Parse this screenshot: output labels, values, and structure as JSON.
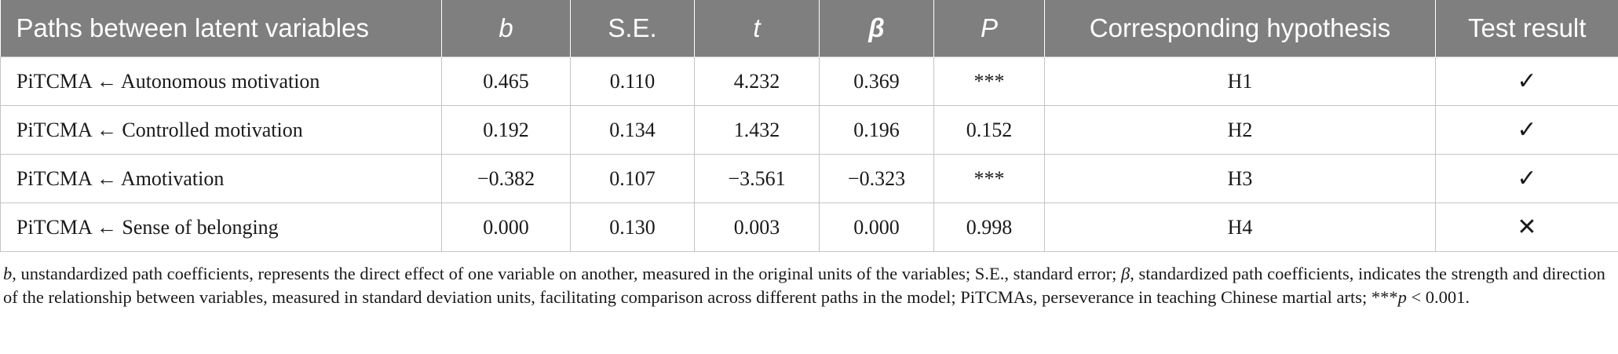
{
  "table": {
    "columns": [
      {
        "label": "Paths between latent variables",
        "italic": false,
        "bold": false
      },
      {
        "label": "b",
        "italic": true,
        "bold": false
      },
      {
        "label": "S.E.",
        "italic": false,
        "bold": false
      },
      {
        "label": "t",
        "italic": true,
        "bold": false
      },
      {
        "label": "β",
        "italic": true,
        "bold": true
      },
      {
        "label": "P",
        "italic": true,
        "bold": false
      },
      {
        "label": "Corresponding hypothesis",
        "italic": false,
        "bold": false
      },
      {
        "label": "Test result",
        "italic": false,
        "bold": false
      }
    ],
    "rows": [
      [
        "PiTCMA ← Autonomous motivation",
        "0.465",
        "0.110",
        "4.232",
        "0.369",
        "***",
        "H1",
        "✓"
      ],
      [
        "PiTCMA ← Controlled motivation",
        "0.192",
        "0.134",
        "1.432",
        "0.196",
        "0.152",
        "H2",
        "✓"
      ],
      [
        "PiTCMA ← Amotivation",
        "−0.382",
        "0.107",
        "−3.561",
        "−0.323",
        "***",
        "H3",
        "✓"
      ],
      [
        "PiTCMA ← Sense of belonging",
        "0.000",
        "0.130",
        "0.003",
        "0.000",
        "0.998",
        "H4",
        "✕"
      ]
    ],
    "colors": {
      "header_bg": "#7f7f7f",
      "header_text": "#ffffff",
      "grid": "#c4c4c4",
      "text": "#1a1a1a"
    }
  },
  "footnote": {
    "b_sym": "b",
    "b_text": ", unstandardized path coefficients, represents the direct effect of one variable on another, measured in the original units of the variables; S.E., standard error; ",
    "beta_sym": "β",
    "beta_text": ", standardized path coefficients, indicates the strength and direction of the relationship between variables, measured in standard deviation units, facilitating comparison across different paths in the model; PiTCMAs, perseverance in teaching Chinese martial arts; ***",
    "p_sym": "p",
    "p_text": " < 0.001."
  }
}
